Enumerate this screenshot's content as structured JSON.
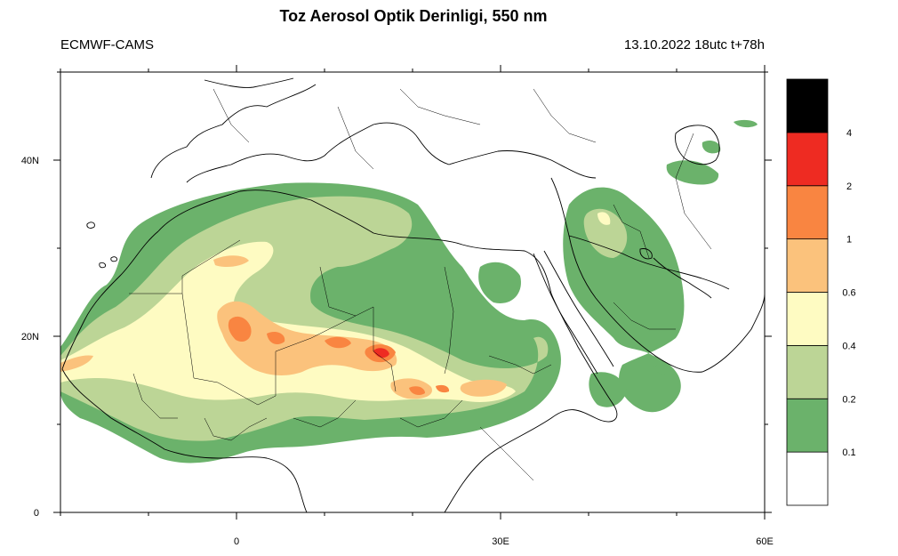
{
  "header": {
    "title": "Toz Aerosol Optik Derinligi, 550 nm",
    "source": "ECMWF-CAMS",
    "run_info": "13.10.2022 18utc t+78h"
  },
  "map": {
    "lon_range": [
      -20,
      60
    ],
    "lat_range": [
      0,
      50
    ],
    "x_ticks": [
      {
        "value": 0,
        "label": "0"
      },
      {
        "value": 30,
        "label": "30E"
      },
      {
        "value": 60,
        "label": "60E"
      }
    ],
    "y_ticks": [
      {
        "value": 0,
        "label": "0"
      },
      {
        "value": 20,
        "label": "20N"
      },
      {
        "value": 40,
        "label": "40N"
      }
    ]
  },
  "legend": {
    "levels": [
      {
        "label": "",
        "color": "#ffffff"
      },
      {
        "label": "0.1",
        "color": "#6bb26b"
      },
      {
        "label": "0.2",
        "color": "#bcd596"
      },
      {
        "label": "0.4",
        "color": "#fefbc2"
      },
      {
        "label": "0.6",
        "color": "#fbc27c"
      },
      {
        "label": "1",
        "color": "#f98541"
      },
      {
        "label": "2",
        "color": "#ee2b22"
      },
      {
        "label": "4",
        "color": "#000000"
      }
    ]
  }
}
